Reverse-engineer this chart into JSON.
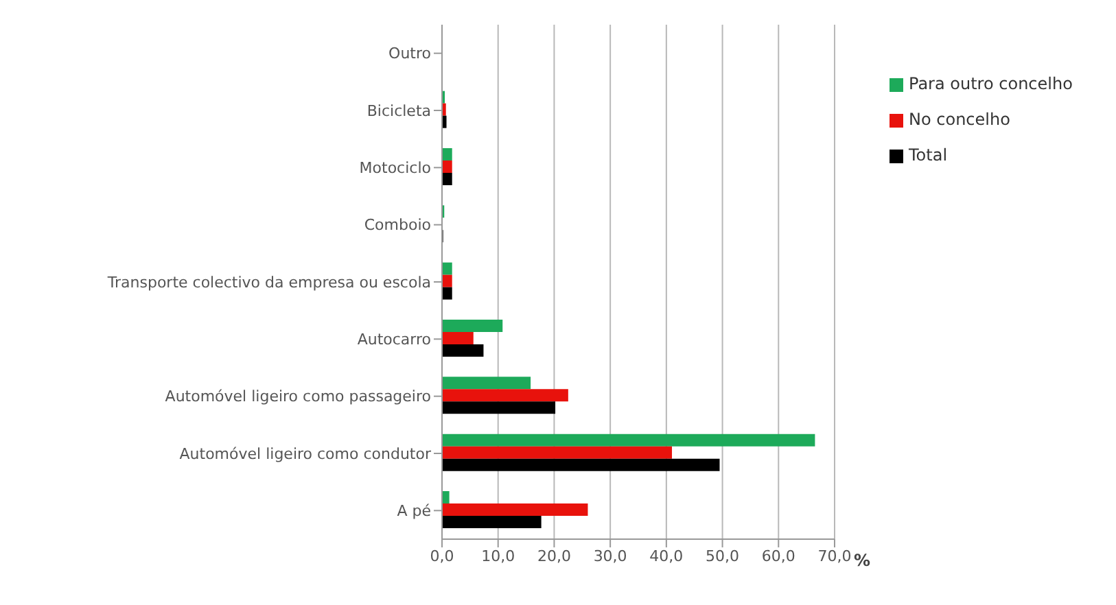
{
  "chart_data": {
    "type": "bar",
    "orientation": "horizontal",
    "xlabel": "%",
    "categories": [
      "Outro",
      "Bicicleta",
      "Motociclo",
      "Comboio",
      "Transporte colectivo da empresa ou escola",
      "Autocarro",
      "Automóvel ligeiro como passageiro",
      "Automóvel ligeiro como condutor",
      "A pé"
    ],
    "series": [
      {
        "name": "Para outro concelho",
        "color": "#1daa5a",
        "values": [
          null,
          0.5,
          1.8,
          0.4,
          1.8,
          10.8,
          15.8,
          66.5,
          1.3
        ]
      },
      {
        "name": "No concelho",
        "color": "#e8120c",
        "values": [
          null,
          0.7,
          1.8,
          null,
          1.8,
          5.6,
          22.5,
          41.0,
          26.0
        ]
      },
      {
        "name": "Total",
        "color": "#000000",
        "values": [
          null,
          0.8,
          1.8,
          0.2,
          1.8,
          7.4,
          20.2,
          49.5,
          17.7
        ]
      }
    ],
    "xlim": [
      0,
      70
    ],
    "xticks": [
      {
        "value": 0,
        "label": "0,0"
      },
      {
        "value": 10,
        "label": "10,0"
      },
      {
        "value": 20,
        "label": "20,0"
      },
      {
        "value": 30,
        "label": "30,0"
      },
      {
        "value": 40,
        "label": "40,0"
      },
      {
        "value": 50,
        "label": "50,0"
      },
      {
        "value": 60,
        "label": "60,0"
      },
      {
        "value": 70,
        "label": "70,0"
      }
    ],
    "grid": "x",
    "legend": "right"
  }
}
